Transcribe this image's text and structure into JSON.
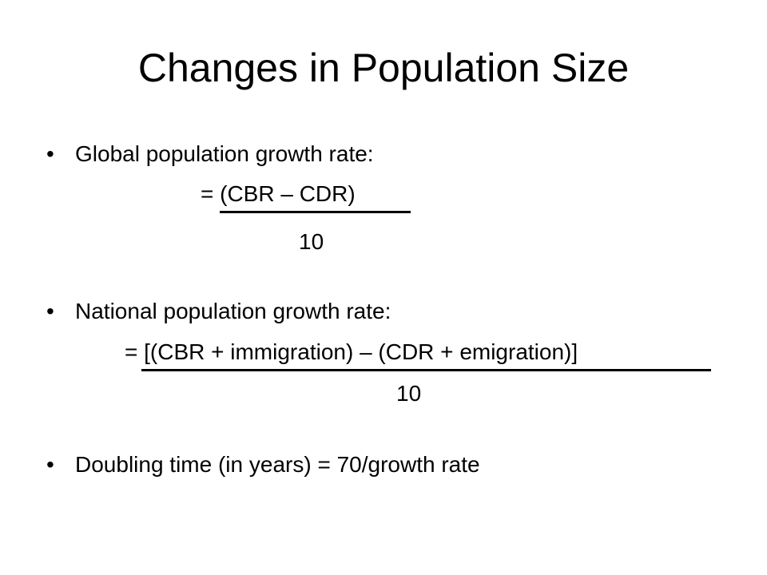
{
  "title": "Changes in Population Size",
  "bullet_symbol": "•",
  "items": [
    {
      "label": "Global population growth rate:",
      "numerator": "= (CBR – CDR)",
      "denominator": "10"
    },
    {
      "label": "National population growth rate:",
      "numerator": "= [(CBR + immigration) – (CDR + emigration)]",
      "denominator": "10"
    },
    {
      "label": "Doubling time (in years) = 70/growth rate"
    }
  ]
}
